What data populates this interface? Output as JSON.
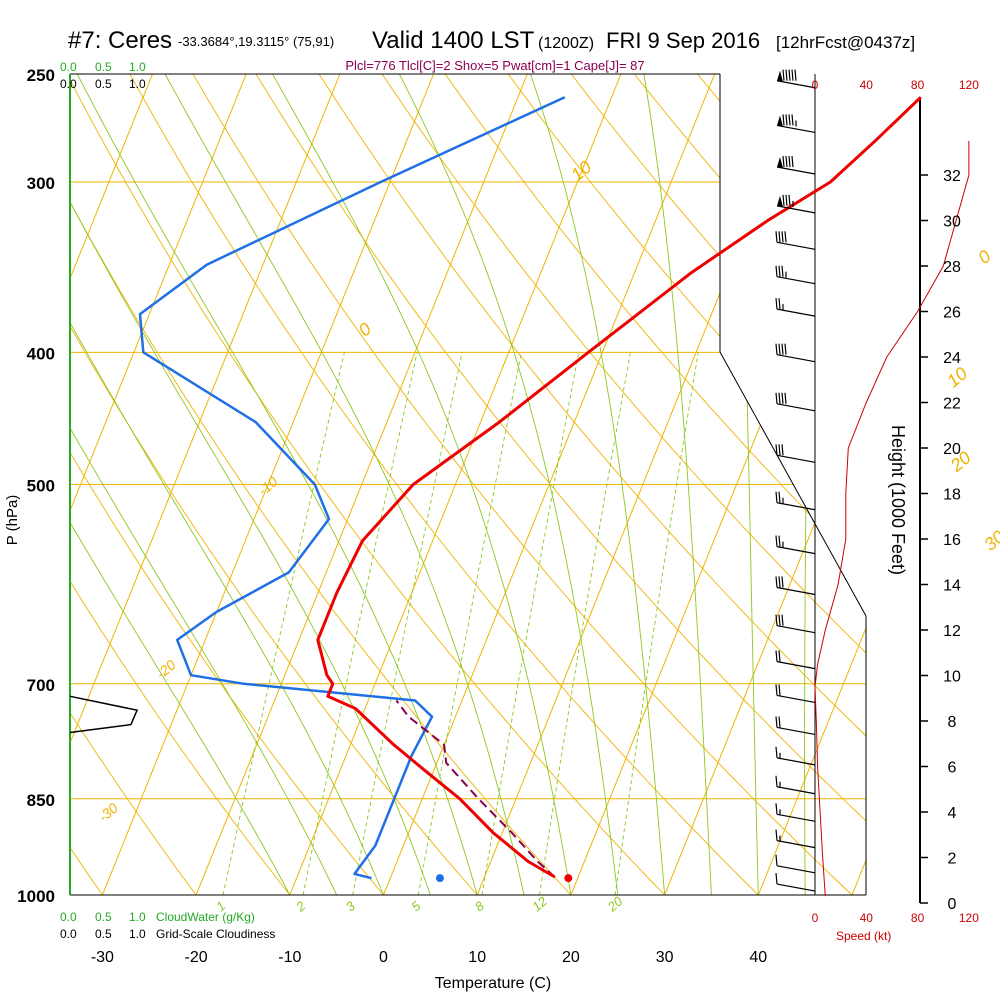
{
  "header": {
    "station": "#7: Ceres",
    "coords": "-33.3684°,19.3115° (75,91)",
    "valid": "Valid 1400 LST",
    "zulu": "(1200Z)",
    "date": "FRI 9 Sep 2016",
    "forecast": "[12hrFcst@0437z]",
    "indices": "Plcl=776 Tlcl[C]=2 Shox=5 Pwat[cm]=1 Cape[J]= 87"
  },
  "colors": {
    "temperature": "#ee0000",
    "dewpoint": "#1f6fe6",
    "parcel": "#8b0050",
    "isotherm": "#f0b400",
    "dry_adiabat": "#f0b400",
    "moist_adiabat": "#8cc820",
    "mixing_ratio": "#8cc820",
    "cloud_scale": "#22aa22",
    "wind_speed": "#cc0000",
    "barbs": "#000000",
    "frame": "#000000"
  },
  "cloud_scales": {
    "top_green": [
      "0.0",
      "0.5",
      "1.0"
    ],
    "top_black": [
      "0.0",
      "0.5",
      "1.0"
    ],
    "bottom_green": [
      "0.0",
      "0.5",
      "1.0"
    ],
    "bottom_green_label": "CloudWater (g/Kg)",
    "bottom_black": [
      "0.0",
      "0.5",
      "1.0"
    ],
    "bottom_black_label": "Grid-Scale Cloudiness"
  },
  "chart_data": {
    "type": "line",
    "subtype": "skew-T log-p sounding",
    "ylabel": "P (hPa)",
    "xlabel": "Temperature (C)",
    "pressure_ticks": [
      250,
      300,
      400,
      500,
      700,
      850,
      1000
    ],
    "temperature_ticks": [
      -30,
      -20,
      -10,
      0,
      10,
      20,
      30,
      40
    ],
    "xlim": [
      -33.5,
      46
    ],
    "ylim_hpa": [
      1000,
      250
    ],
    "skewed_isotherm_labels": [
      {
        "label": "10",
        "t": -10,
        "p": 300
      },
      {
        "label": "0",
        "t": -26,
        "p": 390
      },
      {
        "label": "-10",
        "t": -30,
        "p": 510
      },
      {
        "label": "-20",
        "t": -33,
        "p": 695
      },
      {
        "label": "-30",
        "t": -33,
        "p": 885
      },
      {
        "label": "0",
        "t": 37,
        "p": 345
      },
      {
        "label": "10",
        "t": 39,
        "p": 425
      },
      {
        "label": "20",
        "t": 43,
        "p": 490
      },
      {
        "label": "30",
        "t": 50,
        "p": 560
      }
    ],
    "mixing_ratio_labels": [
      "1",
      "2",
      "3",
      "5",
      "8",
      "12",
      "20"
    ],
    "temperature_profile": [
      {
        "p": 260,
        "t": 23
      },
      {
        "p": 280,
        "t": 20
      },
      {
        "p": 300,
        "t": 17
      },
      {
        "p": 320,
        "t": 12
      },
      {
        "p": 350,
        "t": 6
      },
      {
        "p": 400,
        "t": -1.5
      },
      {
        "p": 450,
        "t": -8
      },
      {
        "p": 500,
        "t": -14.5
      },
      {
        "p": 550,
        "t": -17.5
      },
      {
        "p": 600,
        "t": -18
      },
      {
        "p": 650,
        "t": -18
      },
      {
        "p": 690,
        "t": -15.5
      },
      {
        "p": 700,
        "t": -14.5
      },
      {
        "p": 715,
        "t": -14.5
      },
      {
        "p": 730,
        "t": -11
      },
      {
        "p": 775,
        "t": -5.5
      },
      {
        "p": 810,
        "t": -1
      },
      {
        "p": 850,
        "t": 4
      },
      {
        "p": 900,
        "t": 9
      },
      {
        "p": 945,
        "t": 14
      },
      {
        "p": 970,
        "t": 17.5
      }
    ],
    "dewpoint_profile": [
      {
        "p": 260,
        "t": -15
      },
      {
        "p": 300,
        "t": -31
      },
      {
        "p": 345,
        "t": -46
      },
      {
        "p": 375,
        "t": -51
      },
      {
        "p": 400,
        "t": -49
      },
      {
        "p": 450,
        "t": -34
      },
      {
        "p": 500,
        "t": -25
      },
      {
        "p": 530,
        "t": -22
      },
      {
        "p": 580,
        "t": -24
      },
      {
        "p": 620,
        "t": -30
      },
      {
        "p": 650,
        "t": -33
      },
      {
        "p": 690,
        "t": -30
      },
      {
        "p": 700,
        "t": -24
      },
      {
        "p": 720,
        "t": -5
      },
      {
        "p": 740,
        "t": -2.5
      },
      {
        "p": 790,
        "t": -3
      },
      {
        "p": 850,
        "t": -3
      },
      {
        "p": 920,
        "t": -3
      },
      {
        "p": 965,
        "t": -4
      },
      {
        "p": 972,
        "t": -2
      }
    ],
    "parcel_profile": [
      {
        "p": 970,
        "t": 17.5
      },
      {
        "p": 945,
        "t": 15
      },
      {
        "p": 900,
        "t": 11
      },
      {
        "p": 850,
        "t": 6
      },
      {
        "p": 800,
        "t": 1
      },
      {
        "p": 776,
        "t": 0
      },
      {
        "p": 740,
        "t": -5
      },
      {
        "p": 720,
        "t": -7
      }
    ],
    "surface_temperature": {
      "p": 972,
      "t": 19
    },
    "surface_dewpoint": {
      "p": 972,
      "t": 5.3
    },
    "height_axis": {
      "label": "Height (1000 Feet)",
      "ticks": [
        0,
        2,
        4,
        6,
        8,
        10,
        12,
        14,
        16,
        18,
        20,
        22,
        24,
        26,
        28,
        30,
        32
      ]
    },
    "wind_speed_axis": {
      "label": "Speed (kt)",
      "ticks": [
        "0",
        "40",
        "80",
        "120"
      ]
    },
    "wind_speed_profile": [
      {
        "height_kft": 0.3,
        "kt": 8
      },
      {
        "height_kft": 2,
        "kt": 6
      },
      {
        "height_kft": 4,
        "kt": 4
      },
      {
        "height_kft": 6,
        "kt": 2
      },
      {
        "height_kft": 8,
        "kt": 1
      },
      {
        "height_kft": 9.5,
        "kt": 0
      },
      {
        "height_kft": 10.5,
        "kt": 2
      },
      {
        "height_kft": 12,
        "kt": 8
      },
      {
        "height_kft": 14,
        "kt": 18
      },
      {
        "height_kft": 16,
        "kt": 24
      },
      {
        "height_kft": 18,
        "kt": 24
      },
      {
        "height_kft": 20,
        "kt": 26
      },
      {
        "height_kft": 22,
        "kt": 40
      },
      {
        "height_kft": 24,
        "kt": 56
      },
      {
        "height_kft": 26,
        "kt": 80
      },
      {
        "height_kft": 28,
        "kt": 100
      },
      {
        "height_kft": 30,
        "kt": 110
      },
      {
        "height_kft": 32,
        "kt": 120
      },
      {
        "height_kft": 33.5,
        "kt": 120
      }
    ],
    "cloud_cover_profile": [
      {
        "p": 715,
        "fraction": 0.0
      },
      {
        "p": 732,
        "fraction": 0.75
      },
      {
        "p": 750,
        "fraction": 0.68
      },
      {
        "p": 760,
        "fraction": 0.0
      }
    ],
    "wind_barbs": [
      {
        "p": 255,
        "full": 5,
        "half": 0,
        "pennants": 1
      },
      {
        "p": 275,
        "full": 4,
        "half": 1,
        "pennants": 1
      },
      {
        "p": 295,
        "full": 4,
        "half": 0,
        "pennants": 1
      },
      {
        "p": 315,
        "full": 3,
        "half": 1,
        "pennants": 1
      },
      {
        "p": 335,
        "full": 4,
        "half": 0,
        "pennants": 0
      },
      {
        "p": 355,
        "full": 3,
        "half": 1,
        "pennants": 0
      },
      {
        "p": 375,
        "full": 2,
        "half": 1,
        "pennants": 0
      },
      {
        "p": 405,
        "full": 4,
        "half": 0,
        "pennants": 0
      },
      {
        "p": 440,
        "full": 4,
        "half": 0,
        "pennants": 0
      },
      {
        "p": 480,
        "full": 3,
        "half": 0,
        "pennants": 0
      },
      {
        "p": 520,
        "full": 2,
        "half": 1,
        "pennants": 0
      },
      {
        "p": 560,
        "full": 2,
        "half": 1,
        "pennants": 0
      },
      {
        "p": 600,
        "full": 3,
        "half": 0,
        "pennants": 0
      },
      {
        "p": 640,
        "full": 3,
        "half": 0,
        "pennants": 0
      },
      {
        "p": 680,
        "full": 2,
        "half": 0,
        "pennants": 0
      },
      {
        "p": 720,
        "full": 2,
        "half": 0,
        "pennants": 0
      },
      {
        "p": 760,
        "full": 2,
        "half": 0,
        "pennants": 0
      },
      {
        "p": 800,
        "full": 1,
        "half": 1,
        "pennants": 0
      },
      {
        "p": 840,
        "full": 1,
        "half": 1,
        "pennants": 0
      },
      {
        "p": 880,
        "full": 1,
        "half": 1,
        "pennants": 0
      },
      {
        "p": 920,
        "full": 1,
        "half": 1,
        "pennants": 0
      },
      {
        "p": 960,
        "full": 1,
        "half": 0,
        "pennants": 0
      },
      {
        "p": 990,
        "full": 1,
        "half": 0,
        "pennants": 0
      }
    ]
  }
}
